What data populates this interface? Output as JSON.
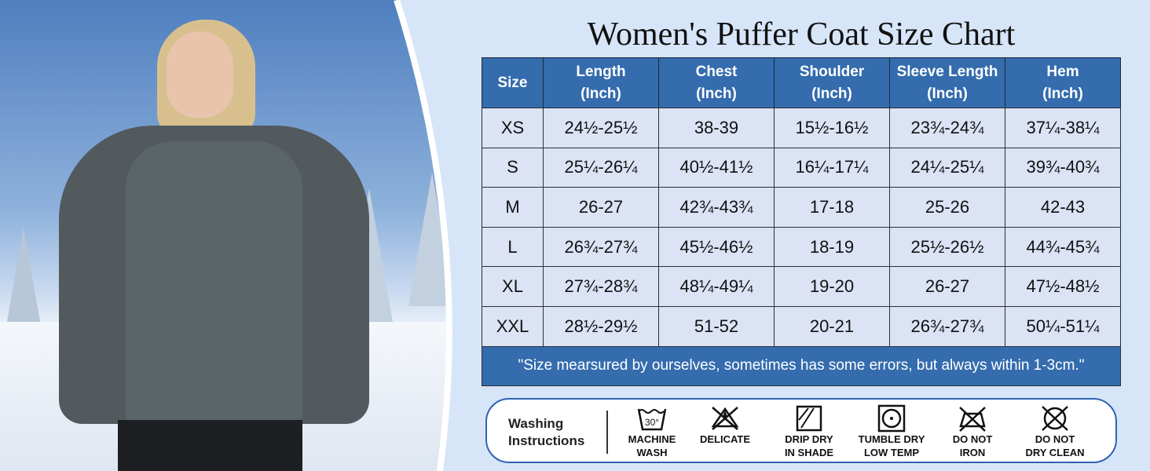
{
  "title": "Women's Puffer Coat Size Chart",
  "table": {
    "headers": [
      [
        "Size",
        ""
      ],
      [
        "Length",
        "(Inch)"
      ],
      [
        "Chest",
        "(Inch)"
      ],
      [
        "Shoulder",
        "(Inch)"
      ],
      [
        "Sleeve Length",
        "(Inch)"
      ],
      [
        "Hem",
        "(Inch)"
      ]
    ],
    "rows": [
      [
        "XS",
        "24½-25½",
        "38-39",
        "15½-16½",
        "23¾-24¾",
        "37¼-38¼"
      ],
      [
        "S",
        "25¼-26¼",
        "40½-41½",
        "16¼-17¼",
        "24¼-25¼",
        "39¾-40¾"
      ],
      [
        "M",
        "26-27",
        "42¾-43¾",
        "17-18",
        "25-26",
        "42-43"
      ],
      [
        "L",
        "26¾-27¾",
        "45½-46½",
        "18-19",
        "25½-26½",
        "44¾-45¾"
      ],
      [
        "XL",
        "27¾-28¾",
        "48¼-49¼",
        "19-20",
        "26-27",
        "47½-48½"
      ],
      [
        "XXL",
        "28½-29½",
        "51-52",
        "20-21",
        "26¾-27¾",
        "50¼-51¼"
      ]
    ],
    "note": "\"Size mearsured by ourselves, sometimes has some errors, but always within 1-3cm.\""
  },
  "washing": {
    "label_line1": "Washing",
    "label_line2": "Instructions",
    "items": [
      {
        "icon": "machine-wash-30-icon",
        "temp": "30°",
        "line1": "MACHINE",
        "line2": "WASH"
      },
      {
        "icon": "no-bleach-icon",
        "line1": "DELICATE",
        "line2": ""
      },
      {
        "icon": "drip-dry-shade-icon",
        "line1": "DRIP DRY",
        "line2": "IN SHADE"
      },
      {
        "icon": "tumble-dry-low-icon",
        "line1": "TUMBLE DRY",
        "line2": "LOW TEMP"
      },
      {
        "icon": "do-not-iron-icon",
        "line1": "DO NOT",
        "line2": "IRON"
      },
      {
        "icon": "do-not-dry-clean-icon",
        "line1": "DO NOT",
        "line2": "DRY CLEAN"
      }
    ]
  },
  "colors": {
    "header": "#346cad",
    "cell": "#dbe3f5",
    "background": "#d7e5f8",
    "border": "#2e62b4"
  }
}
